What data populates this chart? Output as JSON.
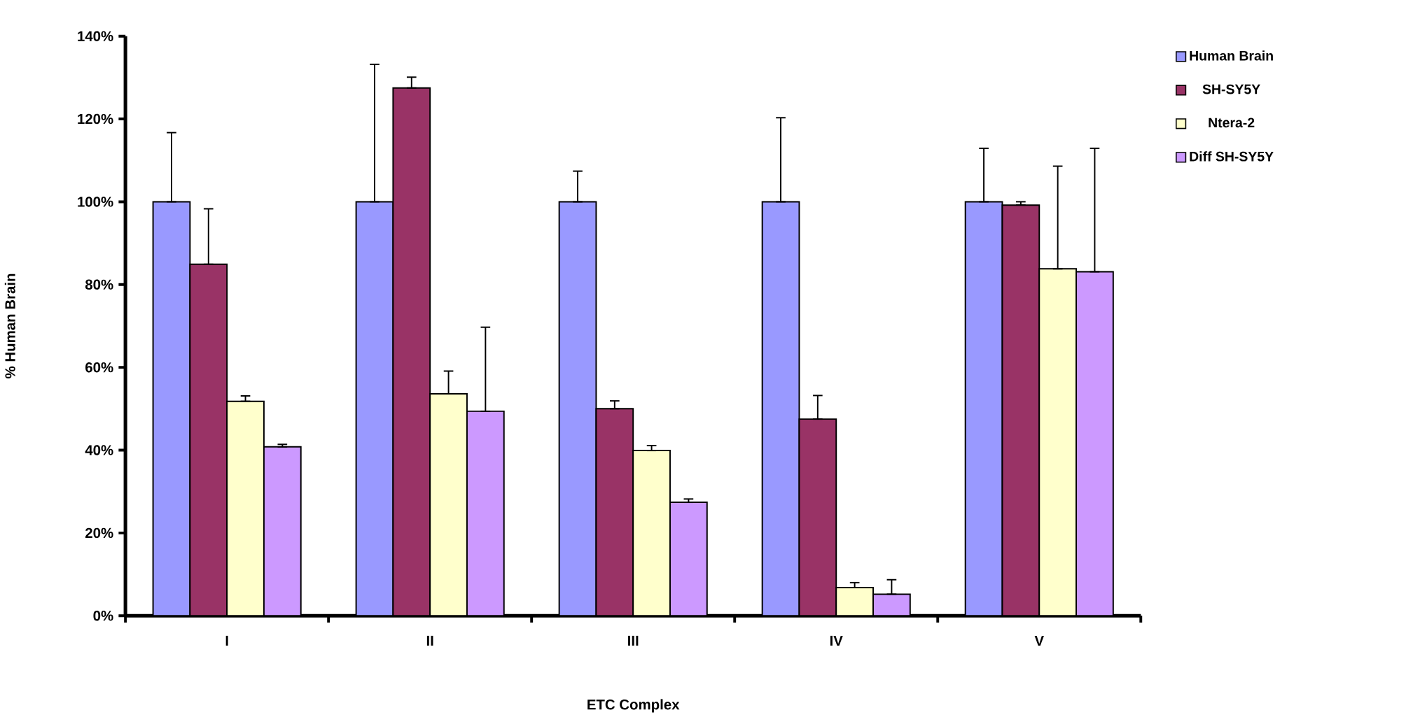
{
  "chart_data": {
    "type": "bar",
    "xlabel": "ETC Complex",
    "ylabel": "% Human Brain",
    "categories": [
      "I",
      "II",
      "III",
      "IV",
      "V"
    ],
    "series": [
      {
        "name": "Human Brain",
        "color": "#9999ff",
        "values": [
          100,
          100,
          100,
          100,
          100
        ],
        "errors": [
          [
            100,
            116.7
          ],
          [
            100,
            133.2
          ],
          [
            100,
            107.4
          ],
          [
            100,
            120.3
          ],
          [
            100,
            112.9
          ]
        ]
      },
      {
        "name": "SH-SY5Y",
        "color": "#993366",
        "values": [
          84.9,
          127.5,
          50.0,
          47.5,
          99.2
        ],
        "errors": [
          [
            84.9,
            98.3
          ],
          [
            127.5,
            130.1
          ],
          [
            50.0,
            51.9
          ],
          [
            47.5,
            53.2
          ],
          [
            99.2,
            100.0
          ]
        ]
      },
      {
        "name": "Ntera-2",
        "color": "#ffffcc",
        "values": [
          51.8,
          53.6,
          39.9,
          6.8,
          83.8
        ],
        "errors": [
          [
            51.8,
            53.1
          ],
          [
            53.6,
            59.1
          ],
          [
            39.9,
            41.1
          ],
          [
            6.8,
            8.0
          ],
          [
            83.8,
            108.6
          ]
        ]
      },
      {
        "name": "Diff SH-SY5Y",
        "color": "#cc99ff",
        "values": [
          40.8,
          49.4,
          27.4,
          5.2,
          83.1
        ],
        "errors": [
          [
            40.8,
            41.4
          ],
          [
            49.4,
            69.7
          ],
          [
            27.4,
            28.2
          ],
          [
            5.2,
            8.7
          ],
          [
            83.1,
            112.9
          ]
        ]
      }
    ],
    "ylim": [
      0,
      140
    ],
    "yticks": [
      {
        "value": 0,
        "label": "0%"
      },
      {
        "value": 20,
        "label": "20%"
      },
      {
        "value": 40,
        "label": "40%"
      },
      {
        "value": 60,
        "label": "60%"
      },
      {
        "value": 80,
        "label": "80%"
      },
      {
        "value": 100,
        "label": "100%"
      },
      {
        "value": 120,
        "label": "120%"
      },
      {
        "value": 140,
        "label": "140%"
      }
    ],
    "legend": "top right",
    "grid": false
  }
}
